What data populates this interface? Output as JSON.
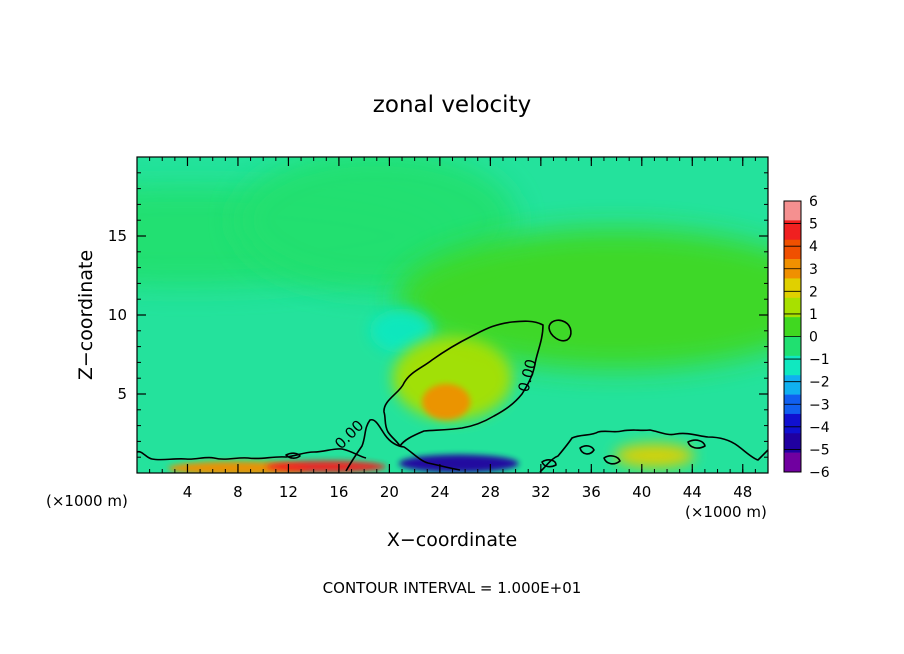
{
  "chart_data": {
    "type": "heatmap",
    "title": "zonal velocity",
    "xlabel": "X−coordinate",
    "ylabel": "Z−coordinate",
    "x_unit": "(×1000 m)",
    "z_unit": "(×1000 m)",
    "xlim": [
      0,
      50
    ],
    "ylim": [
      0,
      20
    ],
    "x_ticks": [
      "4",
      "8",
      "12",
      "16",
      "20",
      "24",
      "28",
      "32",
      "36",
      "40",
      "44",
      "48"
    ],
    "y_ticks": [
      "5",
      "10",
      "15"
    ],
    "contour_label": "0.00",
    "footer": "CONTOUR INTERVAL = 1.000E+01",
    "colorbar": {
      "labels": [
        "6",
        "5",
        "4",
        "3",
        "2",
        "1",
        "0",
        "−1",
        "−2",
        "−3",
        "−4",
        "−5",
        "−6"
      ],
      "colors": [
        "#f59090",
        "#f02020",
        "#f05000",
        "#f09000",
        "#e0d000",
        "#a8e000",
        "#40d820",
        "#20e070",
        "#10e8c0",
        "#10b0f0",
        "#1060f0",
        "#1010d0",
        "#2000a0",
        "#7000a0"
      ],
      "values": [
        6,
        5,
        4,
        3,
        2,
        1,
        0,
        -1,
        -2,
        -3,
        -4,
        -5,
        -6
      ]
    },
    "background_value": -0.5,
    "features": [
      {
        "label": "upper-left",
        "x": 4,
        "z": 15,
        "value": -0.6
      },
      {
        "label": "central-cool",
        "x": 21,
        "z": 9,
        "value": -1.6
      },
      {
        "label": "upper-center",
        "x": 19,
        "z": 16,
        "value": -1.1
      },
      {
        "label": "warm-core",
        "x": 24.5,
        "z": 4.5,
        "value": 3.0
      },
      {
        "label": "warm-halo",
        "x": 25,
        "z": 6,
        "value": 1.2
      },
      {
        "label": "right-band",
        "x": 38,
        "z": 11,
        "value": 0.3
      },
      {
        "label": "surface-warm-left",
        "x": 8,
        "z": 0.3,
        "value": 3.0
      },
      {
        "label": "surface-hot",
        "x": 15,
        "z": 0.4,
        "value": 4.8
      },
      {
        "label": "surface-cold",
        "x": 25.5,
        "z": 0.6,
        "value": -5.5
      },
      {
        "label": "surface-warm-right",
        "x": 41,
        "z": 1.1,
        "value": 2.0
      }
    ]
  }
}
